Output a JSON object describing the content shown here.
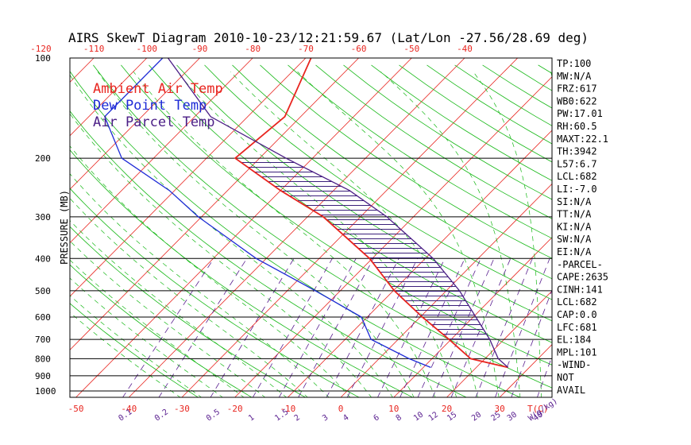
{
  "chart_data": {
    "type": "line",
    "title": "AIRS SkewT Diagram 2010-10-23/12:21:59.67 (Lat/Lon -27.56/28.69 deg)",
    "ylabel": "PRESSURE (MB)",
    "xlabel_bottom": "T(C)",
    "mixing_label": "W(g/kg)",
    "pressure_ticks": [
      "100",
      "200",
      "300",
      "400",
      "500",
      "600",
      "700",
      "800",
      "900",
      "1000"
    ],
    "pressure_levels": [
      100,
      200,
      300,
      400,
      500,
      600,
      700,
      800,
      900,
      1000
    ],
    "top_temp_ticks": [
      "-120",
      "-110",
      "-100",
      "-90",
      "-80",
      "-70",
      "-60",
      "-50",
      "-40"
    ],
    "top_temp_values": [
      -120,
      -110,
      -100,
      -90,
      -80,
      -70,
      -60,
      -50,
      -40
    ],
    "bottom_temp_ticks": [
      "-50",
      "-40",
      "-30",
      "-20",
      "-10",
      "0",
      "10",
      "20",
      "30"
    ],
    "bottom_temp_values": [
      -50,
      -40,
      -30,
      -20,
      -10,
      0,
      10,
      20,
      30
    ],
    "mixing_ratio_ticks": [
      "0.1",
      "0.2",
      "0.5",
      "1",
      "1.5",
      "2",
      "3",
      "4",
      "6",
      "8",
      "10",
      "12",
      "15",
      "20",
      "25",
      "30",
      "40"
    ],
    "mixing_ratio_values": [
      0.1,
      0.2,
      0.5,
      1,
      1.5,
      2,
      3,
      4,
      6,
      8,
      10,
      12,
      15,
      20,
      25,
      30,
      40
    ],
    "series": [
      {
        "name": "Ambient Air Temp",
        "color": "#e8251f",
        "points": [
          [
            850,
            26.0
          ],
          [
            800,
            17.3
          ],
          [
            700,
            9.6
          ],
          [
            600,
            0.4
          ],
          [
            500,
            -9.8
          ],
          [
            400,
            -20.5
          ],
          [
            300,
            -37.0
          ],
          [
            250,
            -50.0
          ],
          [
            200,
            -64.6
          ],
          [
            150,
            -63.0
          ],
          [
            100,
            -69.0
          ]
        ]
      },
      {
        "name": "Dew Point Temp",
        "color": "#1d2ad6",
        "points": [
          [
            850,
            11.4
          ],
          [
            800,
            5.7
          ],
          [
            700,
            -5.1
          ],
          [
            600,
            -11.1
          ],
          [
            500,
            -24.7
          ],
          [
            400,
            -41.9
          ],
          [
            300,
            -60.6
          ],
          [
            250,
            -71.0
          ],
          [
            200,
            -86.0
          ],
          [
            150,
            -97.0
          ],
          [
            100,
            -97.0
          ]
        ]
      },
      {
        "name": "Air Parcel Temp",
        "color": "#4b1e86",
        "points": [
          [
            850,
            26.0
          ],
          [
            800,
            22.5
          ],
          [
            700,
            17.3
          ],
          [
            600,
            10.5
          ],
          [
            500,
            2.5
          ],
          [
            400,
            -8.5
          ],
          [
            300,
            -25.0
          ],
          [
            250,
            -37.0
          ],
          [
            200,
            -55.0
          ],
          [
            150,
            -77.0
          ],
          [
            100,
            -96.0
          ]
        ]
      }
    ],
    "indices": [
      "TP:100",
      "MW:N/A",
      "FRZ:617",
      "WB0:622",
      "PW:17.01",
      "RH:60.5",
      "MAXT:22.1",
      "TH:3942",
      "L57:6.7",
      "LCL:682",
      "LI:-7.0",
      "SI:N/A",
      "TT:N/A",
      "KI:N/A",
      "SW:N/A",
      "EI:N/A",
      "-PARCEL-",
      "CAPE:2635",
      "CINH:141",
      "LCL:682",
      "CAP:0.0",
      "LFC:681",
      "EL:184",
      "MPL:101",
      "-WIND-",
      " NOT",
      "AVAIL"
    ],
    "colors": {
      "isotherm": "#e8251f",
      "dry_adiabat": "#16b816",
      "moist_adiabat": "#16b816",
      "mixing_ratio": "#5a2090",
      "hatch": "#3a1f7a",
      "axis": "#000000"
    },
    "grid": true,
    "legend_placement": "top-left"
  }
}
